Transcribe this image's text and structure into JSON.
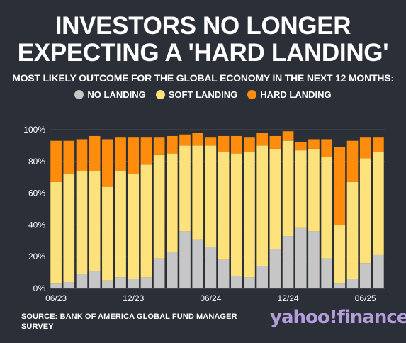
{
  "header": {
    "title_line1": "INVESTORS NO LONGER",
    "title_line2": "EXPECTING A 'HARD LANDING'",
    "subtitle": "MOST LIKELY OUTCOME FOR THE GLOBAL ECONOMY IN THE NEXT 12 MONTHS:"
  },
  "legend": [
    {
      "label": "NO LANDING",
      "color": "#c6c6c6"
    },
    {
      "label": "SOFT LANDING",
      "color": "#fde17b"
    },
    {
      "label": "HARD LANDING",
      "color": "#ff8c0c"
    }
  ],
  "footer": {
    "source": "SOURCE: BANK OF AMERICA GLOBAL FUND MANAGER SURVEY",
    "logo": "yahoo!finance"
  },
  "chart_data": {
    "type": "bar",
    "stacked": true,
    "x": [
      "06/23",
      "07/23",
      "08/23",
      "09/23",
      "10/23",
      "11/23",
      "12/23",
      "01/24",
      "02/24",
      "03/24",
      "04/24",
      "05/24",
      "06/24",
      "07/24",
      "08/24",
      "09/24",
      "10/24",
      "11/24",
      "12/24",
      "01/25",
      "02/25",
      "03/25",
      "04/25",
      "05/25",
      "06/25",
      "07/25"
    ],
    "x_tick_labels": [
      "06/23",
      "12/23",
      "06/24",
      "12/24",
      "06/25"
    ],
    "y_tick_labels": [
      "0%",
      "20%",
      "40%",
      "60%",
      "80%",
      "100%"
    ],
    "ylim": [
      0,
      100
    ],
    "series": [
      {
        "name": "NO LANDING",
        "color": "#c6c6c6",
        "values": [
          3,
          4,
          9,
          11,
          5,
          7,
          6,
          7,
          19,
          23,
          36,
          31,
          26,
          18,
          8,
          7,
          14,
          25,
          33,
          38,
          36,
          19,
          3,
          6,
          16,
          21
        ]
      },
      {
        "name": "SOFT LANDING",
        "color": "#fde17b",
        "values": [
          64,
          68,
          65,
          63,
          59,
          67,
          66,
          71,
          65,
          62,
          54,
          59,
          64,
          68,
          77,
          79,
          76,
          63,
          60,
          49,
          52,
          64,
          37,
          61,
          66,
          65
        ]
      },
      {
        "name": "HARD LANDING",
        "color": "#ff8c0c",
        "values": [
          26,
          21,
          20,
          22,
          30,
          21,
          23,
          17,
          11,
          11,
          7,
          8,
          5,
          10,
          11,
          9,
          8,
          8,
          6,
          5,
          6,
          11,
          49,
          26,
          13,
          9
        ]
      }
    ],
    "grid": true
  }
}
